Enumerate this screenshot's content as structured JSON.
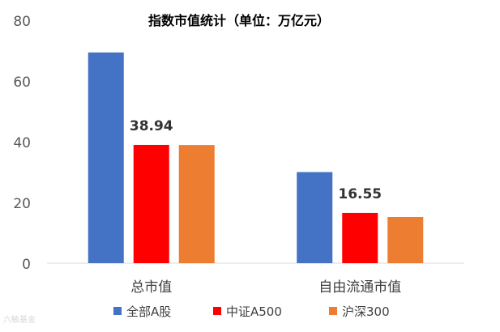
{
  "chart_data": {
    "type": "bar",
    "title": "指数市值统计（单位：万亿元）",
    "categories": [
      "总市值",
      "自由流通市值"
    ],
    "series": [
      {
        "name": "全部A股",
        "values": [
          69.4,
          30.0
        ],
        "color": "#4472C4"
      },
      {
        "name": "中证A500",
        "values": [
          38.94,
          16.55
        ],
        "color": "#FF0000"
      },
      {
        "name": "沪深300",
        "values": [
          38.9,
          15.2
        ],
        "color": "#ED7D31"
      }
    ],
    "data_labels": [
      {
        "series": 1,
        "category": 0,
        "text": "38.94"
      },
      {
        "series": 1,
        "category": 1,
        "text": "16.55"
      }
    ],
    "ylim": [
      0,
      80
    ],
    "yticks": [
      0,
      20,
      40,
      60,
      80
    ],
    "grid": false,
    "legend_position": "bottom"
  },
  "watermark": "六敏基金"
}
